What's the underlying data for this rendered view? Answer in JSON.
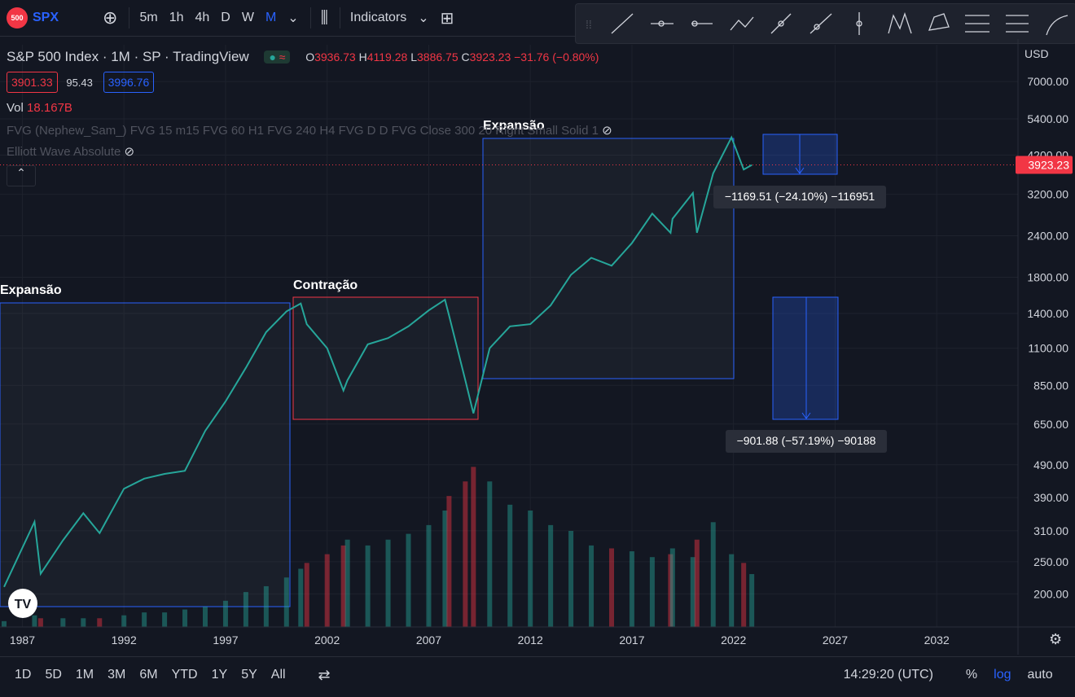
{
  "toolbar": {
    "badge": "500",
    "symbol": "SPX",
    "intervals": [
      "5m",
      "1h",
      "4h",
      "D",
      "W",
      "M"
    ],
    "indicators": "Indicators"
  },
  "legend": {
    "name": "S&P 500 Index",
    "interval": "1M",
    "exchange": "SP",
    "source": "TradingView",
    "open_label": "O",
    "open": 3936.73,
    "high_label": "H",
    "high": 4119.28,
    "low_label": "L",
    "low": 3886.75,
    "close_label": "C",
    "close": 3923.23,
    "change": "−31.76 (−0.80%)",
    "bid": 3901.33,
    "spread": 95.43,
    "ask": 3996.76,
    "volume_label": "Vol",
    "volume": "18.167B",
    "indicator_1": "FVG (Nephew_Sam_) FVG 15 m15 FVG 60 H1 FVG 240 H4 FVG D D FVG Close 300 20 Right Small Solid 1",
    "indicator_2": "Elliott Wave Absolute"
  },
  "annotations": {
    "zone_1": "Expansão",
    "zone_2": "Contração",
    "zone_3": "Expansão",
    "measure_1": "−1169.51 (−24.10%) −116951",
    "measure_2": "−901.88 (−57.19%) −90188"
  },
  "chart_data": {
    "type": "line",
    "currency": "USD",
    "log_scale": true,
    "grid": true,
    "last_price": 3923.23,
    "x": [
      1986.1,
      1987.6,
      1987.9,
      1989,
      1990,
      1990.8,
      1992,
      1993,
      1994,
      1995,
      1996,
      1997,
      1998,
      1999,
      2000,
      2000.7,
      2001,
      2002,
      2002.8,
      2003,
      2004,
      2005,
      2006,
      2007,
      2007.8,
      2008,
      2008.8,
      2009.2,
      2010,
      2011,
      2012,
      2013,
      2014,
      2015,
      2016,
      2017,
      2018,
      2018.9,
      2019,
      2020,
      2020.2,
      2021,
      2021.9,
      2022.5,
      2022.9
    ],
    "series": [
      {
        "name": "SPX",
        "color": "#26a69a",
        "values": [
          210,
          330,
          230,
          290,
          350,
          305,
          415,
          445,
          460,
          470,
          620,
          760,
          960,
          1230,
          1420,
          1500,
          1300,
          1100,
          820,
          880,
          1130,
          1180,
          1280,
          1430,
          1540,
          1380,
          880,
          700,
          1100,
          1280,
          1300,
          1480,
          1830,
          2060,
          1950,
          2280,
          2800,
          2450,
          2700,
          3230,
          2450,
          3700,
          4750,
          3800,
          3923.23
        ]
      },
      {
        "name": "Vol",
        "color": "#26a69a",
        "axis": "y2",
        "values": [
          2,
          4,
          3,
          3,
          3,
          3,
          4,
          5,
          5,
          6,
          7,
          9,
          12,
          14,
          17,
          20,
          22,
          25,
          28,
          30,
          28,
          30,
          32,
          35,
          40,
          45,
          50,
          55,
          50,
          42,
          40,
          35,
          33,
          28,
          27,
          26,
          24,
          25,
          27,
          24,
          30,
          36,
          25,
          22,
          18.167
        ]
      }
    ],
    "xlim": [
      1985.9,
      2036
    ],
    "xticks": [
      1987,
      1992,
      1997,
      2002,
      2007,
      2012,
      2017,
      2022,
      2027,
      2032
    ],
    "ylim": [
      159,
      9030
    ],
    "yticks": [
      {
        "value": 200,
        "label": "200.00"
      },
      {
        "value": 250,
        "label": "250.00"
      },
      {
        "value": 310,
        "label": "310.00"
      },
      {
        "value": 390,
        "label": "390.00"
      },
      {
        "value": 490,
        "label": "490.00"
      },
      {
        "value": 650,
        "label": "650.00"
      },
      {
        "value": 850,
        "label": "850.00"
      },
      {
        "value": 1100,
        "label": "1100.00"
      },
      {
        "value": 1400,
        "label": "1400.00"
      },
      {
        "value": 1800,
        "label": "1800.00"
      },
      {
        "value": 2400,
        "label": "2400.00"
      },
      {
        "value": 3200,
        "label": "3200.00"
      },
      {
        "value": 4200,
        "label": "4200.00"
      },
      {
        "value": 5400,
        "label": "5400.00"
      },
      {
        "value": 7000,
        "label": "7000.00"
      }
    ],
    "y2lim": [
      0,
      200
    ]
  },
  "footer": {
    "ranges": [
      "1D",
      "5D",
      "1M",
      "3M",
      "6M",
      "YTD",
      "1Y",
      "5Y",
      "All"
    ],
    "time": "14:29:20 (UTC)",
    "percent": "%",
    "log": "log",
    "auto": "auto"
  }
}
